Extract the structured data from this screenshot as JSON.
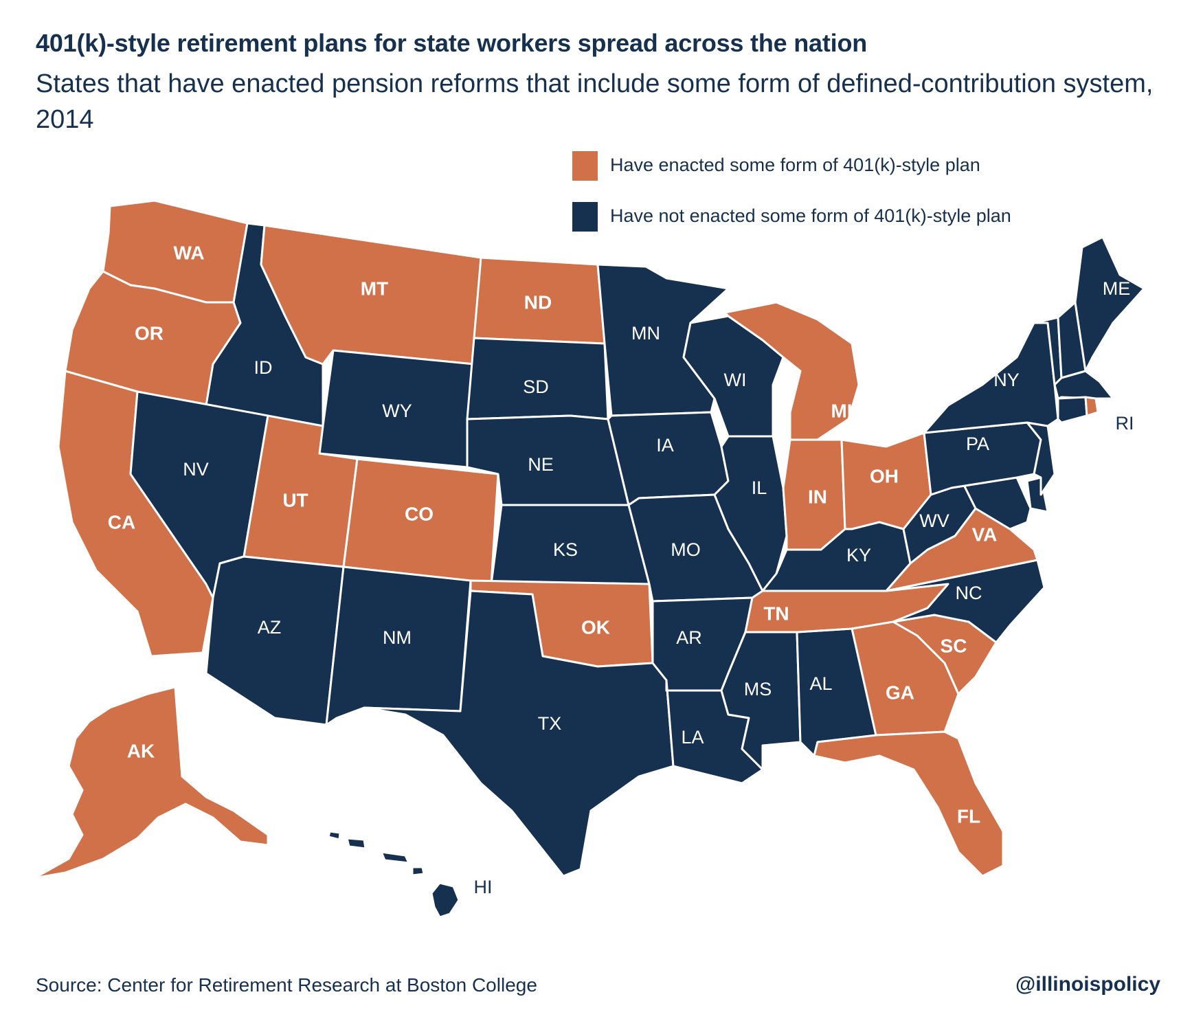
{
  "title": "401(k)-style retirement plans for state workers spread across the nation",
  "subtitle": "States that have enacted pension reforms that include some form of defined-contribution system, 2014",
  "legend": {
    "enacted": {
      "label": "Have enacted some form of 401(k)-style plan",
      "color": "#d0714a"
    },
    "not_enacted": {
      "label": "Have not enacted some form of 401(k)-style plan",
      "color": "#16304f"
    }
  },
  "states": {
    "WA": {
      "label": "WA",
      "enacted": true
    },
    "OR": {
      "label": "OR",
      "enacted": true
    },
    "CA": {
      "label": "CA",
      "enacted": true
    },
    "ID": {
      "label": "ID",
      "enacted": false
    },
    "NV": {
      "label": "NV",
      "enacted": false
    },
    "MT": {
      "label": "MT",
      "enacted": true
    },
    "WY": {
      "label": "WY",
      "enacted": false
    },
    "UT": {
      "label": "UT",
      "enacted": true
    },
    "CO": {
      "label": "CO",
      "enacted": true
    },
    "AZ": {
      "label": "AZ",
      "enacted": false
    },
    "NM": {
      "label": "NM",
      "enacted": false
    },
    "ND": {
      "label": "ND",
      "enacted": true
    },
    "SD": {
      "label": "SD",
      "enacted": false
    },
    "NE": {
      "label": "NE",
      "enacted": false
    },
    "KS": {
      "label": "KS",
      "enacted": false
    },
    "OK": {
      "label": "OK",
      "enacted": true
    },
    "TX": {
      "label": "TX",
      "enacted": false
    },
    "MN": {
      "label": "MN",
      "enacted": false
    },
    "IA": {
      "label": "IA",
      "enacted": false
    },
    "MO": {
      "label": "MO",
      "enacted": false
    },
    "AR": {
      "label": "AR",
      "enacted": false
    },
    "LA": {
      "label": "LA",
      "enacted": false
    },
    "WI": {
      "label": "WI",
      "enacted": false
    },
    "IL": {
      "label": "IL",
      "enacted": false
    },
    "MS": {
      "label": "MS",
      "enacted": false
    },
    "AL": {
      "label": "AL",
      "enacted": false
    },
    "MI": {
      "label": "MI",
      "enacted": true
    },
    "IN": {
      "label": "IN",
      "enacted": true
    },
    "OH": {
      "label": "OH",
      "enacted": true
    },
    "KY": {
      "label": "KY",
      "enacted": false
    },
    "TN": {
      "label": "TN",
      "enacted": true
    },
    "GA": {
      "label": "GA",
      "enacted": true
    },
    "FL": {
      "label": "FL",
      "enacted": true
    },
    "SC": {
      "label": "SC",
      "enacted": true
    },
    "NC": {
      "label": "NC",
      "enacted": false
    },
    "VA": {
      "label": "VA",
      "enacted": true
    },
    "WV": {
      "label": "WV",
      "enacted": false
    },
    "PA": {
      "label": "PA",
      "enacted": false
    },
    "NY": {
      "label": "NY",
      "enacted": false
    },
    "ME": {
      "label": "ME",
      "enacted": false
    },
    "VT": {
      "label": "",
      "enacted": false
    },
    "NH": {
      "label": "",
      "enacted": false
    },
    "MA": {
      "label": "",
      "enacted": false
    },
    "CT": {
      "label": "",
      "enacted": false
    },
    "RI": {
      "label": "RI",
      "enacted": true
    },
    "NJ": {
      "label": "",
      "enacted": false
    },
    "DE": {
      "label": "",
      "enacted": false
    },
    "MD": {
      "label": "",
      "enacted": false
    },
    "AK": {
      "label": "AK",
      "enacted": true
    },
    "HI": {
      "label": "HI",
      "enacted": false
    }
  },
  "source": "Source: Center for Retirement Research at Boston College",
  "handle": "@illinoispolicy"
}
